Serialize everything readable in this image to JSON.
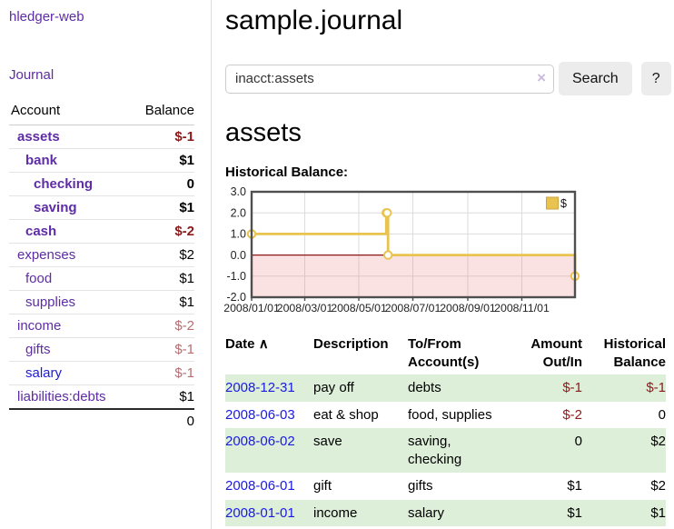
{
  "sidebar": {
    "brand": "hledger-web",
    "nav": [
      {
        "label": "Journal"
      }
    ],
    "accounts_table": {
      "headers": [
        "Account",
        "Balance"
      ],
      "rows": [
        {
          "name": "assets",
          "indent": 0,
          "bold": true,
          "balance": "$-1",
          "balance_style": "negative-strong",
          "link_variant": "visited"
        },
        {
          "name": "bank",
          "indent": 1,
          "bold": true,
          "balance": "$1",
          "balance_style": "normal",
          "link_variant": "visited"
        },
        {
          "name": "checking",
          "indent": 2,
          "bold": true,
          "balance": "0",
          "balance_style": "normal",
          "link_variant": "visited"
        },
        {
          "name": "saving",
          "indent": 2,
          "bold": true,
          "balance": "$1",
          "balance_style": "normal",
          "link_variant": "visited"
        },
        {
          "name": "cash",
          "indent": 1,
          "bold": true,
          "balance": "$-2",
          "balance_style": "negative-strong",
          "link_variant": "visited"
        },
        {
          "name": "expenses",
          "indent": 0,
          "bold": false,
          "balance": "$2",
          "balance_style": "normal",
          "link_variant": "visited"
        },
        {
          "name": "food",
          "indent": 1,
          "bold": false,
          "balance": "$1",
          "balance_style": "normal",
          "link_variant": "visited"
        },
        {
          "name": "supplies",
          "indent": 1,
          "bold": false,
          "balance": "$1",
          "balance_style": "normal",
          "link_variant": "visited"
        },
        {
          "name": "income",
          "indent": 0,
          "bold": false,
          "balance": "$-2",
          "balance_style": "negative-muted",
          "link_variant": "visited"
        },
        {
          "name": "gifts",
          "indent": 1,
          "bold": false,
          "balance": "$-1",
          "balance_style": "negative-muted",
          "link_variant": "visited"
        },
        {
          "name": "salary",
          "indent": 1,
          "bold": false,
          "balance": "$-1",
          "balance_style": "negative-muted",
          "link_variant": "unvisited"
        },
        {
          "name": "liabilities:debts",
          "indent": 0,
          "bold": false,
          "balance": "$1",
          "balance_style": "normal",
          "link_variant": "visited"
        }
      ],
      "total": "0"
    }
  },
  "header": {
    "title": "sample.journal"
  },
  "search": {
    "value": "inacct:assets",
    "clear_icon": "×",
    "button_label": "Search",
    "help_label": "?"
  },
  "account_page": {
    "heading": "assets",
    "chart_title": "Historical Balance:"
  },
  "chart_data": {
    "type": "line",
    "step": true,
    "title": "Historical Balance:",
    "series": [
      {
        "name": "$",
        "points": [
          [
            "2008-01-01",
            1
          ],
          [
            "2008-06-01",
            2
          ],
          [
            "2008-06-02",
            2
          ],
          [
            "2008-06-03",
            0
          ],
          [
            "2008-12-31",
            -1
          ]
        ]
      }
    ],
    "xlim": [
      "2008-01-01",
      "2008-12-31"
    ],
    "ylim": [
      -2,
      3
    ],
    "y_ticks": [
      "3.0",
      "2.0",
      "1.0",
      "0.0",
      "-1.0",
      "-2.0"
    ],
    "x_ticks": [
      "2008/01/01",
      "2008/03/01",
      "2008/05/01",
      "2008/07/01",
      "2008/09/01",
      "2008/11/01"
    ],
    "legend": "$",
    "legend_position": "top-right",
    "grid": true,
    "line_color": "#e9c350",
    "marker_fill": "#ffffff",
    "zero_line_color": "#8c1616",
    "negative_region_fill": "rgba(237,110,110,0.20)",
    "border_color": "#4f4f4f"
  },
  "register_table": {
    "headers": {
      "date": "Date",
      "sort_icon": "∧",
      "description": "Description",
      "accounts": "To/From Account(s)",
      "amount": "Amount Out/In",
      "balance": "Historical Balance"
    },
    "rows": [
      {
        "date": "2008-12-31",
        "description": "pay off",
        "accounts": "debts",
        "amount": "$-1",
        "balance": "$-1"
      },
      {
        "date": "2008-06-03",
        "description": "eat & shop",
        "accounts": "food, supplies",
        "amount": "$-2",
        "balance": "0"
      },
      {
        "date": "2008-06-02",
        "description": "save",
        "accounts": "saving, checking",
        "amount": "0",
        "balance": "$2"
      },
      {
        "date": "2008-06-01",
        "description": "gift",
        "accounts": "gifts",
        "amount": "$1",
        "balance": "$2"
      },
      {
        "date": "2008-01-01",
        "description": "income",
        "accounts": "salary",
        "amount": "$1",
        "balance": "$1"
      }
    ]
  },
  "colors": {
    "link_purple": "#5e2ca5",
    "link_blue": "#1b1be0",
    "negative_strong": "#8b1a1a",
    "negative_muted": "#b76d72",
    "row_stripe_green": "#ddeed9",
    "chart_gold": "#e9c350"
  }
}
